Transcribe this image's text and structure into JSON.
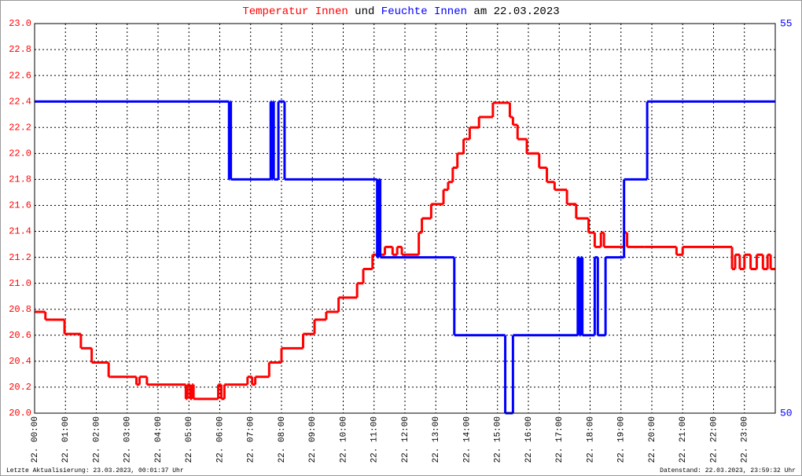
{
  "chart_data": {
    "type": "line",
    "title_connector": "und",
    "title_suffix": "am 22.03.2023",
    "footer_left": "Letzte Aktualisierung: 23.03.2023, 00:01:37 Uhr",
    "footer_right": "Datenstand: 22.03.2023, 23:59:32 Uhr",
    "grid": true,
    "xlim": [
      0,
      24
    ],
    "xticks": [
      {
        "value": 0,
        "label": "22. 00:00"
      },
      {
        "value": 1,
        "label": "22. 01:00"
      },
      {
        "value": 2,
        "label": "22. 02:00"
      },
      {
        "value": 3,
        "label": "22. 03:00"
      },
      {
        "value": 4,
        "label": "22. 04:00"
      },
      {
        "value": 5,
        "label": "22. 05:00"
      },
      {
        "value": 6,
        "label": "22. 06:00"
      },
      {
        "value": 7,
        "label": "22. 07:00"
      },
      {
        "value": 8,
        "label": "22. 08:00"
      },
      {
        "value": 9,
        "label": "22. 09:00"
      },
      {
        "value": 10,
        "label": "22. 10:00"
      },
      {
        "value": 11,
        "label": "22. 11:00"
      },
      {
        "value": 12,
        "label": "22. 12:00"
      },
      {
        "value": 13,
        "label": "22. 13:00"
      },
      {
        "value": 14,
        "label": "22. 14:00"
      },
      {
        "value": 15,
        "label": "22. 15:00"
      },
      {
        "value": 16,
        "label": "22. 16:00"
      },
      {
        "value": 17,
        "label": "22. 17:00"
      },
      {
        "value": 18,
        "label": "22. 18:00"
      },
      {
        "value": 19,
        "label": "22. 19:00"
      },
      {
        "value": 20,
        "label": "22. 20:00"
      },
      {
        "value": 21,
        "label": "22. 21:00"
      },
      {
        "value": 22,
        "label": "22. 22:00"
      },
      {
        "value": 23,
        "label": "22. 23:00"
      }
    ],
    "ylim": [
      20.0,
      23.0
    ],
    "yticks": [
      {
        "value": 20,
        "label": "20.0"
      },
      20.2,
      20.4,
      20.6,
      20.8,
      {
        "value": 21,
        "label": "21.0"
      },
      21.2,
      21.4,
      21.6,
      21.8,
      {
        "value": 22,
        "label": "22.0"
      },
      22.2,
      22.4,
      22.6,
      22.8,
      {
        "value": 23,
        "label": "23.0"
      }
    ],
    "y2lim": [
      50,
      55
    ],
    "y2ticks": [
      50,
      55
    ],
    "series": [
      {
        "name": "Temperatur Innen",
        "color": "#ff0000",
        "x": [
          0,
          0.35,
          0.55,
          0.97,
          1.5,
          1.85,
          2.4,
          2.45,
          3.3,
          3.4,
          3.64,
          4.9,
          4.95,
          5.04,
          5.1,
          5.15,
          5.25,
          5.95,
          6.05,
          6.15,
          6.25,
          6.9,
          7.05,
          7.15,
          7.6,
          8.0,
          8.7,
          9.07,
          9.45,
          9.85,
          10.45,
          10.65,
          10.95,
          11.35,
          11.6,
          11.75,
          11.9,
          12.45,
          12.55,
          12.85,
          13.25,
          13.4,
          13.55,
          13.7,
          13.9,
          14.1,
          14.4,
          14.85,
          15.4,
          15.5,
          15.65,
          15.95,
          16.35,
          16.6,
          16.85,
          17.25,
          17.55,
          17.95,
          18.15,
          18.35,
          18.45,
          19.0,
          19.1,
          19.2,
          19.75,
          20.8,
          21.0,
          22.6,
          22.7,
          22.85,
          23.0,
          23.2,
          23.4,
          23.6,
          23.75,
          23.85
        ],
        "values": [
          20.78,
          20.72,
          20.72,
          20.61,
          20.5,
          20.39,
          20.28,
          20.28,
          20.22,
          20.28,
          20.22,
          20.11,
          20.22,
          20.11,
          20.22,
          20.11,
          20.11,
          20.22,
          20.11,
          20.22,
          20.22,
          20.28,
          20.22,
          20.28,
          20.39,
          20.5,
          20.61,
          20.72,
          20.78,
          20.89,
          21.0,
          21.11,
          21.22,
          21.28,
          21.22,
          21.28,
          21.22,
          21.39,
          21.5,
          21.61,
          21.72,
          21.78,
          21.89,
          22.0,
          22.11,
          22.2,
          22.28,
          22.39,
          22.28,
          22.22,
          22.11,
          22.0,
          21.89,
          21.78,
          21.72,
          21.61,
          21.5,
          21.39,
          21.28,
          21.39,
          21.28,
          21.28,
          21.39,
          21.28,
          21.28,
          21.22,
          21.28,
          21.11,
          21.22,
          21.11,
          21.22,
          21.11,
          21.22,
          21.11,
          21.22,
          21.11
        ]
      },
      {
        "name": "Feuchte Innen",
        "color": "#0000ff",
        "axis": "y2",
        "x": [
          0,
          6.3,
          6.33,
          6.36,
          7.65,
          7.68,
          7.72,
          7.75,
          7.9,
          8.1,
          11.1,
          11.15,
          11.2,
          13.6,
          15.25,
          15.5,
          17.6,
          17.65,
          17.7,
          17.75,
          18.15,
          18.25,
          18.5,
          19.1,
          19.85
        ],
        "values": [
          54,
          53,
          54,
          53,
          54,
          53,
          54,
          53,
          54,
          53,
          52,
          53,
          52,
          51,
          50,
          51,
          52,
          51,
          52,
          51,
          52,
          51,
          52,
          53,
          54
        ]
      }
    ]
  }
}
